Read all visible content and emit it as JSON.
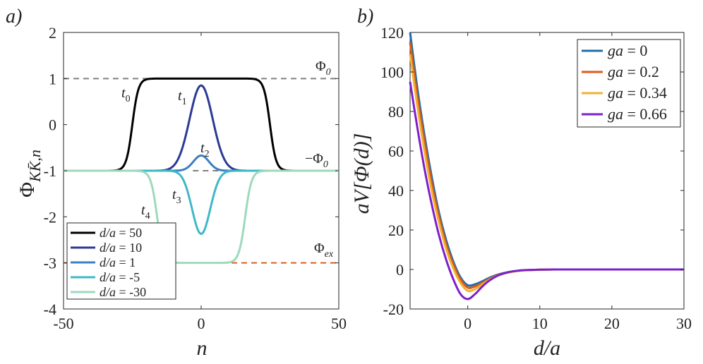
{
  "colors": {
    "black": "#000000",
    "navy": "#2b3a94",
    "blue": "#3c7fc0",
    "teal": "#3fb8c6",
    "mint": "#9ed9bd",
    "gray": "#808080",
    "orange": "#e05a1c",
    "b_blue": "#1f6fa8",
    "b_orange": "#db5a1a",
    "b_yellow": "#f0b133",
    "b_purple": "#7e1fc9"
  },
  "chart_data": [
    {
      "type": "line",
      "panel_label": "a)",
      "xlabel": "n",
      "ylabel": "Φ",
      "ylabel_sub": "KK̄,n",
      "xlim": [
        -50,
        50
      ],
      "ylim": [
        -4,
        2
      ],
      "x_ticks": [
        "-50",
        "0",
        "50"
      ],
      "x_tick_values": [
        -50,
        0,
        50
      ],
      "y_ticks": [
        "2",
        "1",
        "0",
        "-1",
        "-2",
        "-3",
        "-4"
      ],
      "y_tick_values": [
        2,
        1,
        0,
        -1,
        -2,
        -3,
        -4
      ],
      "reference_lines": [
        {
          "name": "Φ0",
          "label": "Φ",
          "sub": "0",
          "prefix": "",
          "y": 1,
          "x_start": -50,
          "x_end": 50,
          "color_key": "gray"
        },
        {
          "name": "-Φ0",
          "label": "Φ",
          "sub": "0",
          "prefix": "−",
          "y": -1,
          "x_start": -3,
          "x_end": 10,
          "color_key": "gray"
        },
        {
          "name": "Φex",
          "label": "Φ",
          "sub": "ex",
          "prefix": "",
          "y": -3,
          "x_start": -50,
          "x_end": 50,
          "color_key": "orange"
        }
      ],
      "series": [
        {
          "name": "d/a = 50",
          "legend_var": "d/a",
          "legend_val": "= 50",
          "kind": "plateau",
          "center": 0,
          "height": 2,
          "half_width": 25,
          "steepness": 2.2,
          "color_key": "black",
          "annotation": {
            "label": "t",
            "sub": "0"
          }
        },
        {
          "name": "d/a = 10",
          "legend_var": "d/a",
          "legend_val": "= 10",
          "kind": "gauss",
          "center": 0,
          "height": 1.85,
          "sigma": 4.2,
          "color_key": "navy",
          "annotation": {
            "label": "t",
            "sub": "1"
          }
        },
        {
          "name": "d/a = 1",
          "legend_var": "d/a",
          "legend_val": "= 1",
          "kind": "gauss",
          "center": 0,
          "height": 0.33,
          "sigma": 2.8,
          "color_key": "blue",
          "annotation": {
            "label": "t",
            "sub": "2"
          }
        },
        {
          "name": "d/a = -5",
          "legend_var": "d/a",
          "legend_val": "= -5",
          "kind": "gauss",
          "center": 0,
          "height": -1.37,
          "sigma": 3.3,
          "color_key": "teal",
          "annotation": {
            "label": "t",
            "sub": "3"
          }
        },
        {
          "name": "d/a = -30",
          "legend_var": "d/a",
          "legend_val": "= -30",
          "kind": "plateau",
          "center": 0,
          "height": -2,
          "half_width": 16,
          "steepness": 2.3,
          "color_key": "mint",
          "annotation": {
            "label": "t",
            "sub": "4"
          }
        }
      ]
    },
    {
      "type": "line",
      "panel_label": "b)",
      "xlabel": "d/a",
      "ylabel": "aV[Φ(d)]",
      "xlim": [
        -8,
        30
      ],
      "ylim": [
        -20,
        120
      ],
      "x_ticks": [
        "0",
        "10",
        "20",
        "30"
      ],
      "x_tick_values": [
        0,
        10,
        20,
        30
      ],
      "y_ticks": [
        "120",
        "100",
        "80",
        "60",
        "40",
        "20",
        "0",
        "-20"
      ],
      "y_tick_values": [
        120,
        100,
        80,
        60,
        40,
        20,
        0,
        -20
      ],
      "series": [
        {
          "name": "ga = 0",
          "legend_var": "ga",
          "legend_val": "= 0",
          "x": [
            -8,
            -7,
            -6,
            -5,
            -4,
            -3,
            -2,
            -1,
            0,
            1,
            2,
            3,
            4,
            5,
            6,
            7,
            8,
            10,
            12,
            15,
            20,
            25,
            30
          ],
          "y": [
            120,
            92,
            68,
            47,
            29,
            15,
            4,
            -4,
            -8,
            -7.5,
            -6,
            -4.2,
            -2.8,
            -1.8,
            -1.1,
            -0.6,
            -0.3,
            -0.1,
            0,
            0,
            0,
            0,
            0
          ],
          "color_key": "b_blue"
        },
        {
          "name": "ga = 0.2",
          "legend_var": "ga",
          "legend_val": "= 0.2",
          "x": [
            -8,
            -7,
            -6,
            -5,
            -4,
            -3,
            -2,
            -1,
            0,
            1,
            2,
            3,
            4,
            5,
            6,
            7,
            8,
            10,
            12,
            15,
            20,
            25,
            30
          ],
          "y": [
            115,
            88,
            65,
            44,
            27,
            13,
            2.5,
            -5,
            -9.2,
            -8.6,
            -6.8,
            -4.8,
            -3.1,
            -2,
            -1.2,
            -0.7,
            -0.35,
            -0.1,
            0,
            0,
            0,
            0,
            0
          ],
          "color_key": "b_orange"
        },
        {
          "name": "ga = 0.34",
          "legend_var": "ga",
          "legend_val": "= 0.34",
          "x": [
            -8,
            -7,
            -6,
            -5,
            -4,
            -3,
            -2,
            -1,
            0,
            1,
            2,
            3,
            4,
            5,
            6,
            7,
            8,
            10,
            12,
            15,
            20,
            25,
            30
          ],
          "y": [
            109,
            83,
            60,
            40,
            24,
            10.5,
            0.5,
            -6.8,
            -10.8,
            -10,
            -7.6,
            -5.2,
            -3.3,
            -2.1,
            -1.3,
            -0.75,
            -0.4,
            -0.1,
            0,
            0,
            0,
            0,
            0
          ],
          "color_key": "b_yellow"
        },
        {
          "name": "ga = 0.66",
          "legend_var": "ga",
          "legend_val": "= 0.66",
          "x": [
            -8,
            -7,
            -6,
            -5,
            -4,
            -3,
            -2,
            -1,
            0,
            1,
            2,
            3,
            4,
            5,
            6,
            7,
            8,
            10,
            12,
            15,
            20,
            25,
            30
          ],
          "y": [
            95,
            72,
            51,
            33,
            17.5,
            5,
            -5,
            -12.5,
            -15,
            -12.5,
            -8.7,
            -5.6,
            -3.4,
            -2,
            -1.1,
            -0.6,
            -0.3,
            -0.1,
            0,
            0,
            0,
            0,
            0
          ],
          "color_key": "b_purple"
        }
      ]
    }
  ]
}
